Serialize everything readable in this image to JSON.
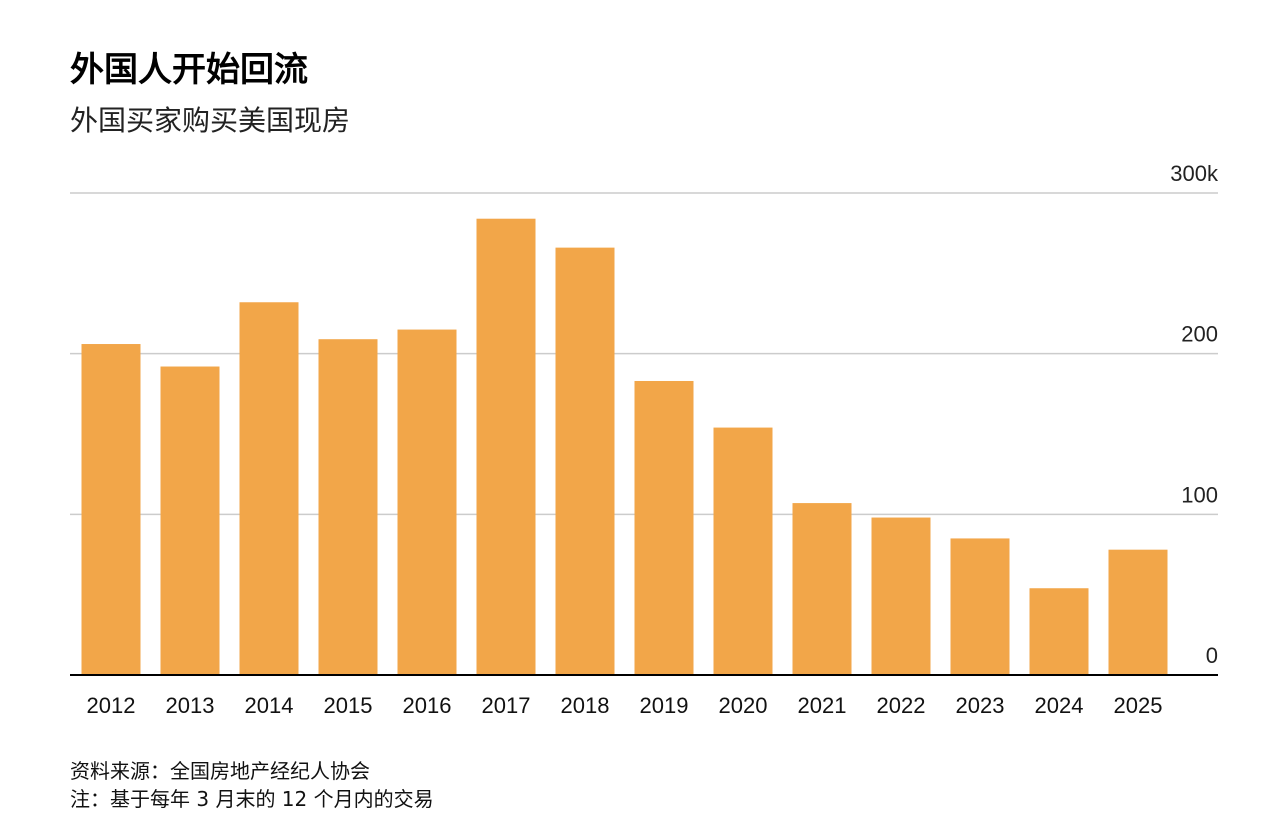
{
  "chart_data": {
    "type": "bar",
    "title": "外国人开始回流",
    "subtitle": "外国买家购买美国现房",
    "categories": [
      "2012",
      "2013",
      "2014",
      "2015",
      "2016",
      "2017",
      "2018",
      "2019",
      "2020",
      "2021",
      "2022",
      "2023",
      "2024",
      "2025"
    ],
    "values": [
      206,
      192,
      232,
      209,
      215,
      284,
      266,
      183,
      154,
      107,
      98,
      85,
      54,
      78
    ],
    "y_ticks": [
      {
        "value": 300,
        "label": "300k"
      },
      {
        "value": 200,
        "label": "200"
      },
      {
        "value": 100,
        "label": "100"
      },
      {
        "value": 0,
        "label": "0"
      }
    ],
    "ylim": [
      0,
      300
    ],
    "grid": true,
    "bar_color": "#F2A649",
    "source": "资料来源：全国房地产经纪人协会",
    "note": "注：基于每年 3 月末的 12 个月内的交易"
  }
}
